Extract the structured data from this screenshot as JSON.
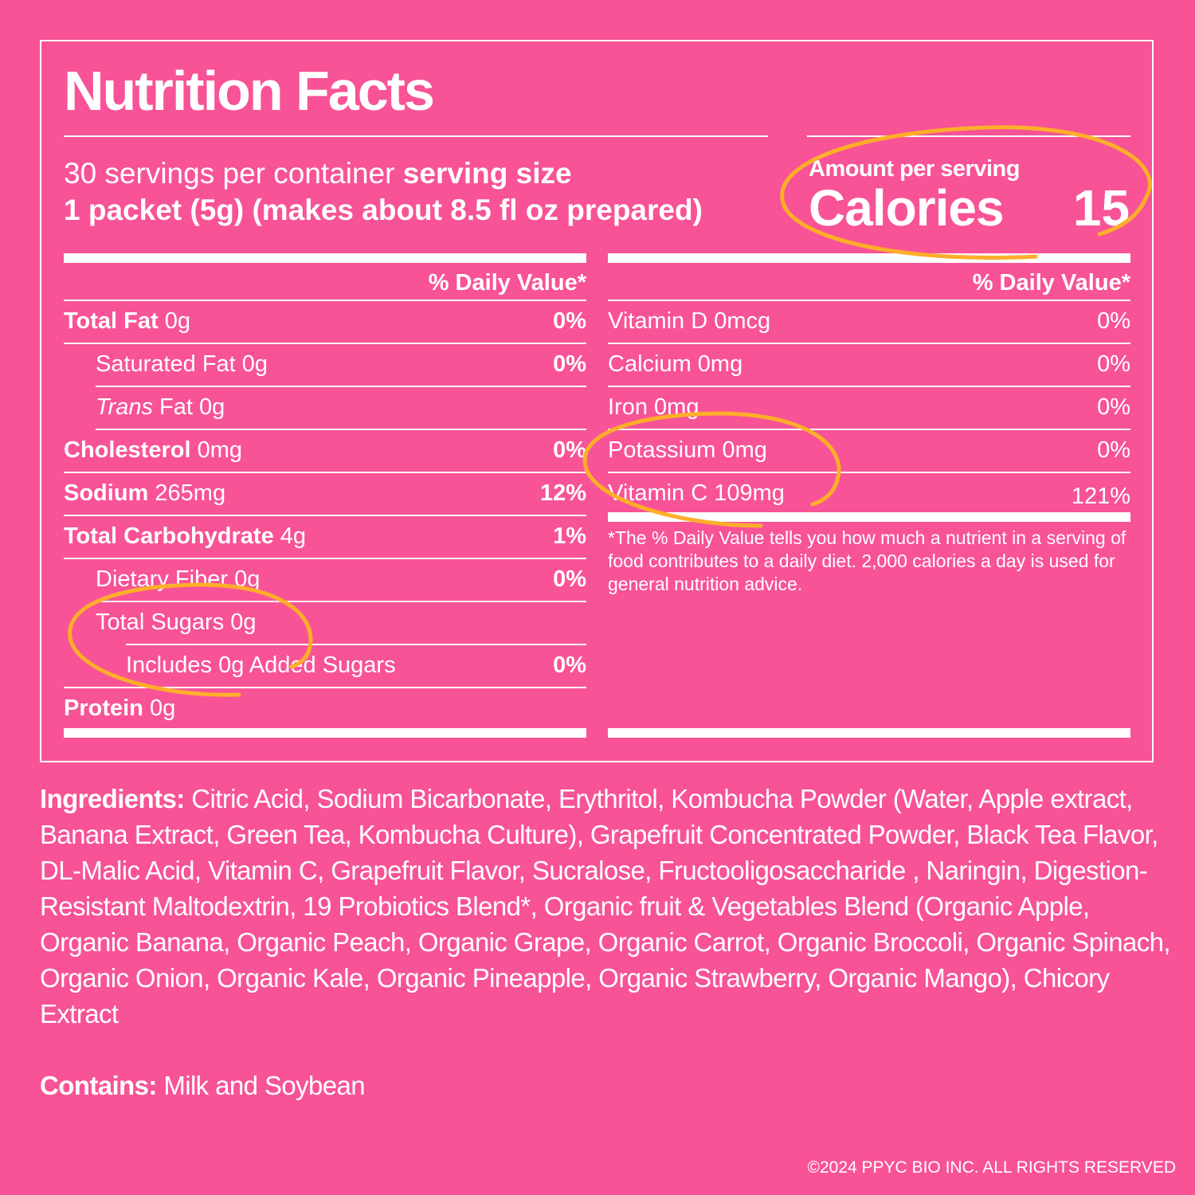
{
  "title": "Nutrition Facts",
  "servings": {
    "per_container": "30 servings per container",
    "size_label": "serving size",
    "size_value": "1 packet (5g) (makes about 8.5 fl oz prepared)"
  },
  "calories": {
    "amount_label": "Amount per serving",
    "label": "Calories",
    "value": "15"
  },
  "dv_header": "% Daily Value*",
  "left_rows": [
    {
      "name": "Total Fat",
      "amount": "0g",
      "pct": "0%"
    },
    {
      "name": "Saturated Fat",
      "amount": "0g",
      "pct": "0%"
    },
    {
      "name": "Trans",
      "amount": "Fat 0g",
      "pct": ""
    },
    {
      "name": "Cholesterol",
      "amount": "0mg",
      "pct": "0%"
    },
    {
      "name": "Sodium",
      "amount": "265mg",
      "pct": "12%"
    },
    {
      "name": "Total Carbohydrate",
      "amount": "4g",
      "pct": "1%"
    },
    {
      "name": "Dietary Fiber",
      "amount": "0g",
      "pct": "0%"
    },
    {
      "name": "Total Sugars",
      "amount": "0g",
      "pct": ""
    },
    {
      "name": "Includes 0g Added Sugars",
      "amount": "",
      "pct": "0%"
    },
    {
      "name": "Protein",
      "amount": "0g",
      "pct": ""
    }
  ],
  "right_rows": [
    {
      "name": "Vitamin D 0mcg",
      "pct": "0%"
    },
    {
      "name": "Calcium 0mg",
      "pct": "0%"
    },
    {
      "name": "Iron 0mg",
      "pct": "0%"
    },
    {
      "name": "Potassium 0mg",
      "pct": "0%"
    },
    {
      "name": "Vitamin C 109mg",
      "pct": "121%"
    }
  ],
  "footnote": "*The % Daily Value tells you how much a nutrient in a serving of food contributes to a daily diet. 2,000 calories a day is used for general nutrition advice.",
  "ingredients": {
    "label": "Ingredients:",
    "text": " Citric Acid, Sodium Bicarbonate, Erythritol, Kombucha Powder (Water, Apple extract, Banana Extract, Green Tea, Kombucha Culture), Grapefruit Concentrated Powder, Black Tea Flavor, DL-Malic Acid, Vitamin C, Grapefruit Flavor, Sucralose, Fructooligosaccharide , Naringin, Digestion-Resistant Maltodextrin, 19 Probiotics Blend*, Organic fruit & Vegetables Blend (Organic Apple, Organic Banana, Organic Peach, Organic Grape, Organic Carrot, Organic Broccoli, Organic Spinach, Organic Onion, Organic Kale, Organic Pineapple, Organic Strawberry, Organic Mango), Chicory Extract"
  },
  "contains": {
    "label": "Contains:",
    "text": " Milk and Soybean"
  },
  "copyright": "©2024 PPYC BIO INC. ALL RIGHTS RESERVED",
  "colors": {
    "background": "#f75396",
    "text": "#ffffff",
    "highlight": "#ffae2a"
  }
}
